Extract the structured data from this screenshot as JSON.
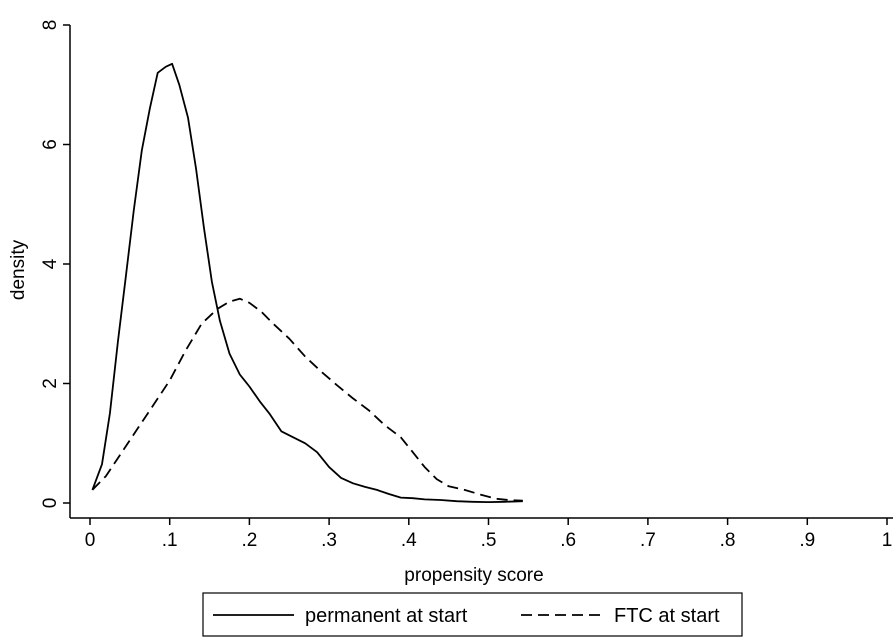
{
  "chart_data": {
    "type": "line",
    "title": "",
    "xlabel": "propensity score",
    "ylabel": "density",
    "xlim": [
      0,
      1
    ],
    "ylim": [
      0,
      8
    ],
    "x_ticks": [
      {
        "value": 0,
        "label": "0"
      },
      {
        "value": 0.1,
        "label": ".1"
      },
      {
        "value": 0.2,
        "label": ".2"
      },
      {
        "value": 0.3,
        "label": ".3"
      },
      {
        "value": 0.4,
        "label": ".4"
      },
      {
        "value": 0.5,
        "label": ".5"
      },
      {
        "value": 0.6,
        "label": ".6"
      },
      {
        "value": 0.7,
        "label": ".7"
      },
      {
        "value": 0.8,
        "label": ".8"
      },
      {
        "value": 0.9,
        "label": ".9"
      },
      {
        "value": 1,
        "label": "1"
      }
    ],
    "y_ticks": [
      {
        "value": 0,
        "label": "0"
      },
      {
        "value": 2,
        "label": "2"
      },
      {
        "value": 4,
        "label": "4"
      },
      {
        "value": 6,
        "label": "6"
      },
      {
        "value": 8,
        "label": "8"
      }
    ],
    "grid": false,
    "legend_position": "bottom",
    "series": [
      {
        "name": "permanent at start",
        "style": "solid",
        "color": "#000000",
        "points": [
          [
            0.003,
            0.22
          ],
          [
            0.015,
            0.65
          ],
          [
            0.025,
            1.5
          ],
          [
            0.035,
            2.7
          ],
          [
            0.045,
            3.8
          ],
          [
            0.055,
            4.9
          ],
          [
            0.065,
            5.9
          ],
          [
            0.075,
            6.6
          ],
          [
            0.085,
            7.2
          ],
          [
            0.095,
            7.3
          ],
          [
            0.103,
            7.35
          ],
          [
            0.112,
            7.0
          ],
          [
            0.123,
            6.45
          ],
          [
            0.133,
            5.6
          ],
          [
            0.143,
            4.6
          ],
          [
            0.153,
            3.7
          ],
          [
            0.163,
            3.05
          ],
          [
            0.175,
            2.5
          ],
          [
            0.188,
            2.15
          ],
          [
            0.2,
            1.95
          ],
          [
            0.213,
            1.7
          ],
          [
            0.225,
            1.5
          ],
          [
            0.24,
            1.2
          ],
          [
            0.255,
            1.1
          ],
          [
            0.27,
            1.0
          ],
          [
            0.285,
            0.85
          ],
          [
            0.3,
            0.6
          ],
          [
            0.315,
            0.42
          ],
          [
            0.33,
            0.33
          ],
          [
            0.345,
            0.27
          ],
          [
            0.36,
            0.22
          ],
          [
            0.375,
            0.15
          ],
          [
            0.39,
            0.09
          ],
          [
            0.405,
            0.08
          ],
          [
            0.42,
            0.06
          ],
          [
            0.44,
            0.05
          ],
          [
            0.46,
            0.03
          ],
          [
            0.48,
            0.02
          ],
          [
            0.5,
            0.015
          ],
          [
            0.52,
            0.02
          ],
          [
            0.543,
            0.03
          ]
        ]
      },
      {
        "name": "FTC at start",
        "style": "dashed",
        "color": "#000000",
        "points": [
          [
            0.003,
            0.22
          ],
          [
            0.02,
            0.45
          ],
          [
            0.04,
            0.85
          ],
          [
            0.06,
            1.25
          ],
          [
            0.08,
            1.65
          ],
          [
            0.1,
            2.05
          ],
          [
            0.12,
            2.55
          ],
          [
            0.14,
            3.0
          ],
          [
            0.16,
            3.25
          ],
          [
            0.175,
            3.37
          ],
          [
            0.188,
            3.42
          ],
          [
            0.2,
            3.35
          ],
          [
            0.215,
            3.2
          ],
          [
            0.23,
            3.0
          ],
          [
            0.25,
            2.75
          ],
          [
            0.27,
            2.45
          ],
          [
            0.29,
            2.2
          ],
          [
            0.31,
            1.97
          ],
          [
            0.33,
            1.75
          ],
          [
            0.35,
            1.55
          ],
          [
            0.37,
            1.3
          ],
          [
            0.39,
            1.1
          ],
          [
            0.405,
            0.85
          ],
          [
            0.42,
            0.6
          ],
          [
            0.435,
            0.4
          ],
          [
            0.45,
            0.28
          ],
          [
            0.47,
            0.22
          ],
          [
            0.49,
            0.14
          ],
          [
            0.51,
            0.07
          ],
          [
            0.525,
            0.05
          ],
          [
            0.543,
            0.04
          ]
        ]
      }
    ]
  }
}
